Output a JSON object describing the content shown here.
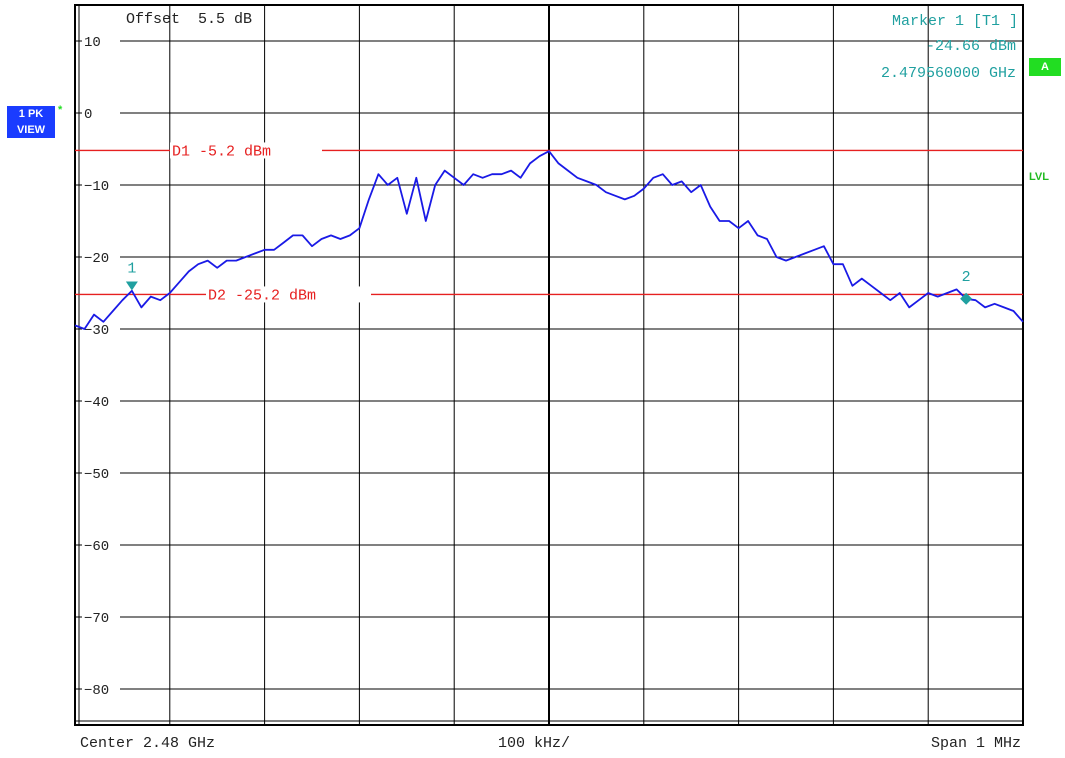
{
  "header": {
    "offset_text": "Offset  5.5 dB",
    "marker_title": "Marker 1 [T1 ]",
    "marker_level": "-24.66 dBm",
    "marker_freq": "2.479560000 GHz"
  },
  "side": {
    "trace_badge_line1": "1 PK",
    "trace_badge_line2": "VIEW",
    "star": "*",
    "a_badge": "A",
    "lvl_label": "LVL"
  },
  "footer": {
    "center": "Center 2.48 GHz",
    "div": "100 kHz/",
    "span": "Span 1 MHz"
  },
  "colors": {
    "trace": "#1a1ae6",
    "display_line": "#e62020",
    "marker": "#20a0a0",
    "grid": "#000000"
  },
  "chart_data": {
    "type": "line",
    "title": "",
    "xlabel": "",
    "ylabel": "",
    "xlim": [
      2.4795,
      2.4805
    ],
    "ylim": [
      -85,
      15
    ],
    "y_ticks": [
      10,
      0,
      -10,
      -20,
      -30,
      -40,
      -50,
      -60,
      -70,
      -80
    ],
    "y_tick_labels": [
      "10",
      "0",
      "−10",
      "−20",
      "−30",
      "−40",
      "−50",
      "−60",
      "−70",
      "−80"
    ],
    "grid": true,
    "display_lines": [
      {
        "name": "D1",
        "label": "D1 -5.2 dBm",
        "value": -5.2
      },
      {
        "name": "D2",
        "label": "D2 -25.2 dBm",
        "value": -25.2
      }
    ],
    "markers": [
      {
        "label": "1",
        "x": 2.47956,
        "y": -24.66
      },
      {
        "label": "2",
        "x": 2.48044,
        "y": -25.8
      }
    ],
    "series": [
      {
        "x": [
          2.4795,
          2.47951,
          2.47952,
          2.47953,
          2.47954,
          2.47955,
          2.47956,
          2.47957,
          2.47958,
          2.47959,
          2.4796,
          2.47961,
          2.47962,
          2.47963,
          2.47964,
          2.47965,
          2.47966,
          2.47967,
          2.47968,
          2.47969,
          2.4797,
          2.47971,
          2.47972,
          2.47973,
          2.47974,
          2.47975,
          2.47976,
          2.47977,
          2.47978,
          2.47979,
          2.4798,
          2.47981,
          2.47982,
          2.47983,
          2.47984,
          2.47985,
          2.47986,
          2.47987,
          2.47988,
          2.47989,
          2.4799,
          2.47991,
          2.47992,
          2.47993,
          2.47994,
          2.47995,
          2.47996,
          2.47997,
          2.47998,
          2.47999,
          2.48,
          2.48001,
          2.48002,
          2.48003,
          2.48004,
          2.48005,
          2.48006,
          2.48007,
          2.48008,
          2.48009,
          2.4801,
          2.48011,
          2.48012,
          2.48013,
          2.48014,
          2.48015,
          2.48016,
          2.48017,
          2.48018,
          2.48019,
          2.4802,
          2.48021,
          2.48022,
          2.48023,
          2.48024,
          2.48025,
          2.48026,
          2.48027,
          2.48028,
          2.48029,
          2.4803,
          2.48031,
          2.48032,
          2.48033,
          2.48034,
          2.48035,
          2.48036,
          2.48037,
          2.48038,
          2.48039,
          2.4804,
          2.48041,
          2.48042,
          2.48043,
          2.48044,
          2.48045,
          2.48046,
          2.48047,
          2.48048,
          2.48049,
          2.4805
        ],
        "y": [
          -29.5,
          -30,
          -28,
          -29,
          -27.5,
          -26,
          -24.7,
          -27,
          -25.5,
          -26,
          -25,
          -23.5,
          -22,
          -21,
          -20.5,
          -21.5,
          -20.5,
          -20.5,
          -20,
          -19.5,
          -19,
          -19,
          -18,
          -17,
          -17,
          -18.5,
          -17.5,
          -17,
          -17.5,
          -17,
          -16,
          -12,
          -8.5,
          -10,
          -9,
          -14,
          -9,
          -15,
          -10,
          -8,
          -9,
          -10,
          -8.5,
          -9,
          -8.5,
          -8.5,
          -8,
          -9,
          -7,
          -6,
          -5.3,
          -7,
          -8,
          -9,
          -9.5,
          -10,
          -11,
          -11.5,
          -12,
          -11.5,
          -10.5,
          -9,
          -8.5,
          -10,
          -9.5,
          -11,
          -10,
          -13,
          -15,
          -15,
          -16,
          -15,
          -17,
          -17.5,
          -20,
          -20.5,
          -20,
          -19.5,
          -19,
          -18.5,
          -21,
          -21,
          -24,
          -23,
          -24,
          -25,
          -26,
          -25,
          -27,
          -26,
          -25,
          -25.5,
          -25,
          -24.5,
          -25.8,
          -26,
          -27,
          -26.5,
          -27,
          -27.5,
          -29
        ]
      }
    ]
  }
}
